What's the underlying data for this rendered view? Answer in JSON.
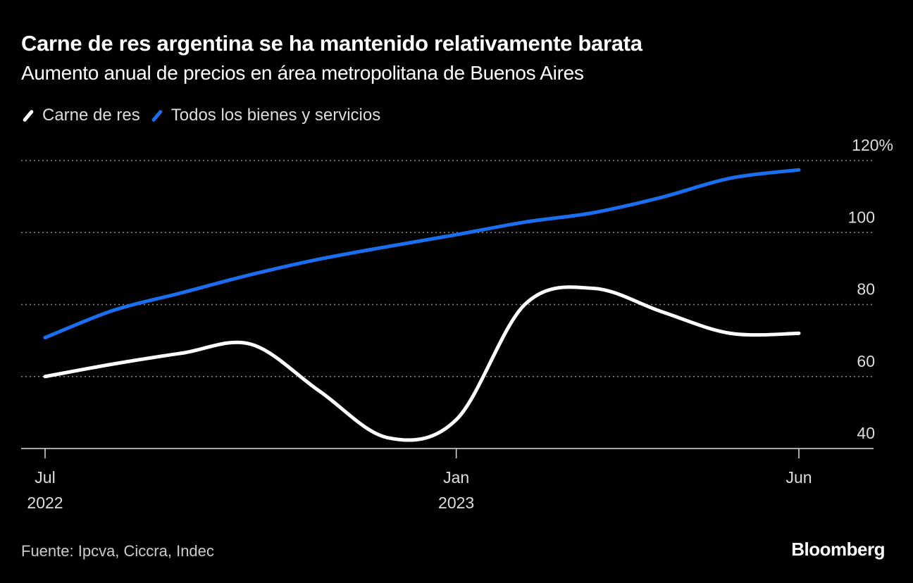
{
  "title": "Carne de res argentina se ha mantenido relativamente barata",
  "subtitle": "Aumento anual de precios en área metropolitana de Buenos Aires",
  "source": "Fuente: Ipcva, Ciccra, Indec",
  "logo": "Bloomberg",
  "chart_data": {
    "type": "line",
    "title": "Carne de res argentina se ha mantenido relativamente barata",
    "subtitle": "Aumento anual de precios en área metropolitana de Buenos Aires",
    "x": [
      "2022-07",
      "2022-08",
      "2022-09",
      "2022-10",
      "2022-11",
      "2022-12",
      "2023-01",
      "2023-02",
      "2023-03",
      "2023-04",
      "2023-05",
      "2023-06"
    ],
    "x_ticks": [
      {
        "x": "2022-07",
        "label": "Jul",
        "sublabel": "2022"
      },
      {
        "x": "2023-01",
        "label": "Jan",
        "sublabel": "2023"
      },
      {
        "x": "2023-06",
        "label": "Jun",
        "sublabel": ""
      }
    ],
    "y_ticks": [
      "40",
      "60",
      "80",
      "100",
      "120%"
    ],
    "y_tick_values": [
      40,
      60,
      80,
      100,
      120
    ],
    "ylim": [
      40,
      120
    ],
    "grid": true,
    "legend_position": "top-left",
    "series": [
      {
        "name": "Carne de res",
        "color": "#ffffff",
        "values": [
          60,
          63.5,
          66.5,
          69,
          56,
          43,
          48,
          80,
          84.5,
          78,
          72,
          72
        ]
      },
      {
        "name": "Todos los bienes y servicios",
        "color": "#1a6ff0",
        "values": [
          70.8,
          78.4,
          83.3,
          88.3,
          92.6,
          96.1,
          99.4,
          102.9,
          105.5,
          109.8,
          115.1,
          117.4
        ]
      }
    ]
  }
}
